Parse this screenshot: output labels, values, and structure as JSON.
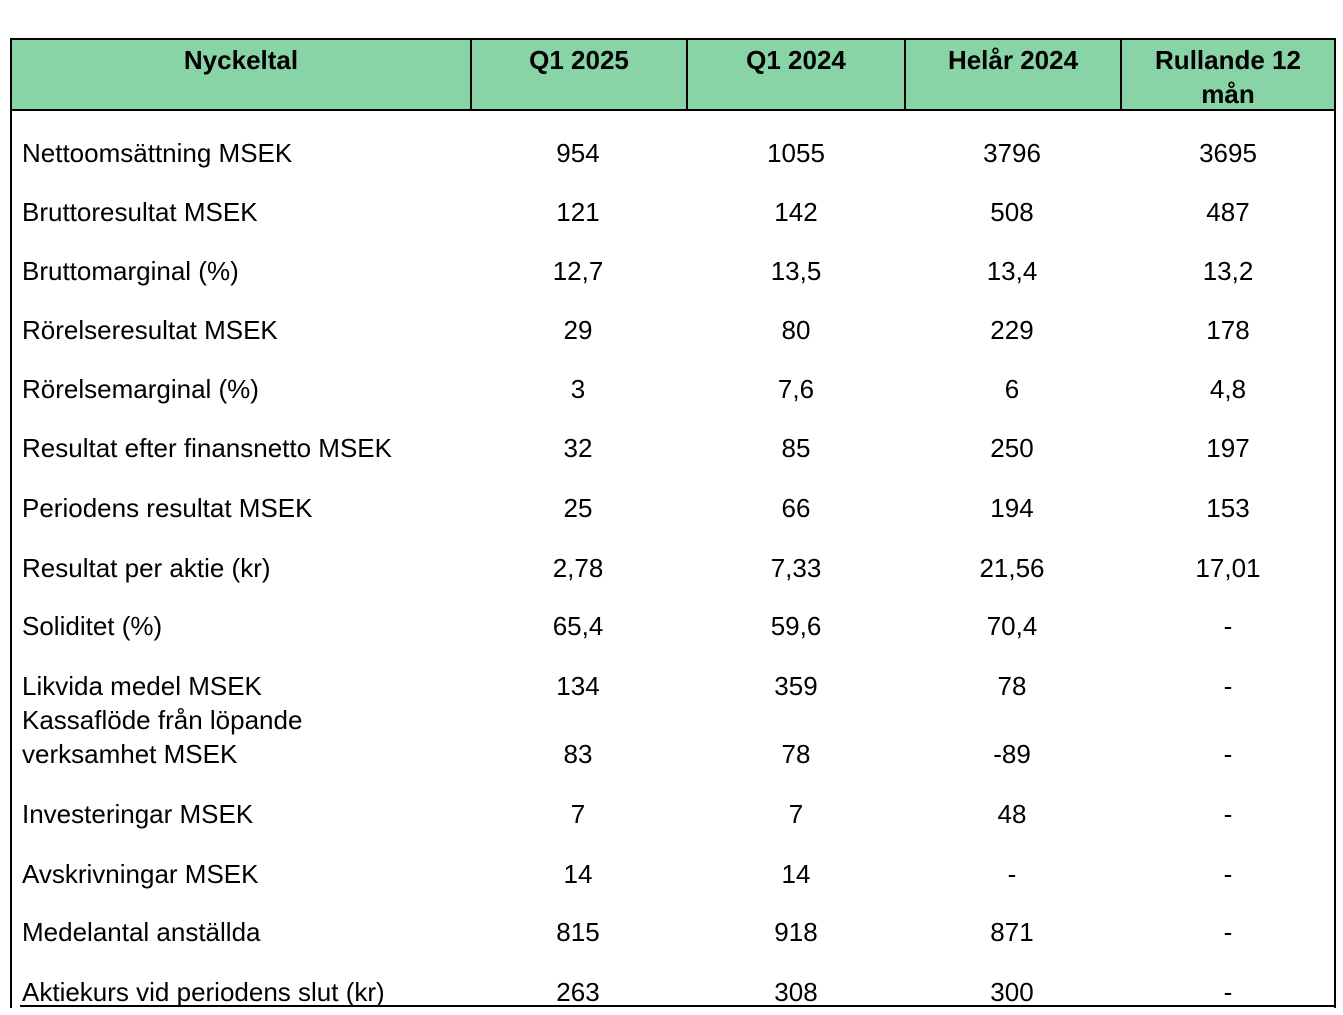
{
  "table": {
    "headers": [
      "Nyckeltal",
      "Q1 2025",
      "Q1 2024",
      "Helår 2024",
      "Rullande 12 mån"
    ],
    "rows": [
      {
        "label": "Nettoomsättning MSEK",
        "values": [
          "954",
          "1055",
          "3796",
          "3695"
        ]
      },
      {
        "label": "Bruttoresultat MSEK",
        "values": [
          "121",
          "142",
          "508",
          "487"
        ]
      },
      {
        "label": "Bruttomarginal (%)",
        "values": [
          "12,7",
          "13,5",
          "13,4",
          "13,2"
        ]
      },
      {
        "label": "Rörelseresultat MSEK",
        "values": [
          "29",
          "80",
          "229",
          "178"
        ]
      },
      {
        "label": "Rörelsemarginal (%)",
        "values": [
          "3",
          "7,6",
          "6",
          "4,8"
        ]
      },
      {
        "label": "Resultat efter finansnetto MSEK",
        "values": [
          "32",
          "85",
          "250",
          "197"
        ]
      },
      {
        "label": "Periodens resultat MSEK",
        "values": [
          "25",
          "66",
          "194",
          "153"
        ]
      },
      {
        "label": "Resultat per aktie (kr)",
        "values": [
          "2,78",
          "7,33",
          "21,56",
          "17,01"
        ]
      },
      {
        "label": "Soliditet (%)",
        "values": [
          "65,4",
          "59,6",
          "70,4",
          "-"
        ]
      },
      {
        "label": "Likvida medel MSEK",
        "values": [
          "134",
          "359",
          "78",
          "-"
        ]
      },
      {
        "label": "Kassaflöde från löpande verksamhet MSEK",
        "values": [
          "83",
          "78",
          "-89",
          "-"
        ]
      },
      {
        "label": "Investeringar MSEK",
        "values": [
          "7",
          "7",
          "48",
          "-"
        ]
      },
      {
        "label": "Avskrivningar MSEK",
        "values": [
          "14",
          "14",
          "-",
          "-"
        ]
      },
      {
        "label": "Medelantal anställda",
        "values": [
          "815",
          "918",
          "871",
          "-"
        ]
      },
      {
        "label": "Aktiekurs vid periodens slut (kr)",
        "values": [
          "263",
          "308",
          "300",
          "-"
        ]
      }
    ]
  },
  "colors": {
    "header_background": "#88d4a6",
    "border": "#000000"
  }
}
